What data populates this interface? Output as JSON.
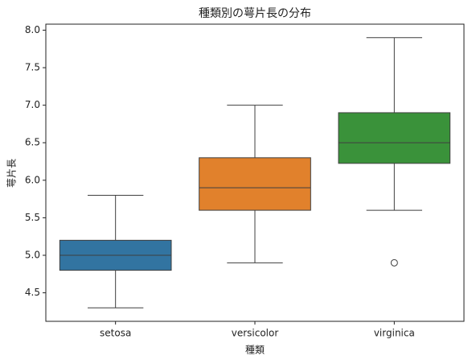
{
  "chart_data": {
    "type": "box",
    "title": "種類別の萼片長の分布",
    "x_label": "種類",
    "y_label": "萼片長",
    "categories": [
      "setosa",
      "versicolor",
      "virginica"
    ],
    "colors": [
      "#3274a1",
      "#e1812c",
      "#3a923a"
    ],
    "boxes": [
      {
        "whislo": 4.3,
        "q1": 4.8,
        "med": 5.0,
        "q3": 5.2,
        "whishi": 5.8
      },
      {
        "whislo": 4.9,
        "q1": 5.6,
        "med": 5.9,
        "q3": 6.3,
        "whishi": 7.0
      },
      {
        "whislo": 5.6,
        "q1": 6.225,
        "med": 6.5,
        "q3": 6.9,
        "whishi": 7.9,
        "fliers": [
          4.9
        ]
      }
    ],
    "ylim": [
      4.12,
      8.08
    ],
    "yticks": [
      {
        "value": 4.5,
        "label": "4.5"
      },
      {
        "value": 5,
        "label": "5.0"
      },
      {
        "value": 5.5,
        "label": "5.5"
      },
      {
        "value": 6,
        "label": "6.0"
      },
      {
        "value": 6.5,
        "label": "6.5"
      },
      {
        "value": 7,
        "label": "7.0"
      },
      {
        "value": 7.5,
        "label": "7.5"
      },
      {
        "value": 8,
        "label": "8.0"
      }
    ]
  }
}
